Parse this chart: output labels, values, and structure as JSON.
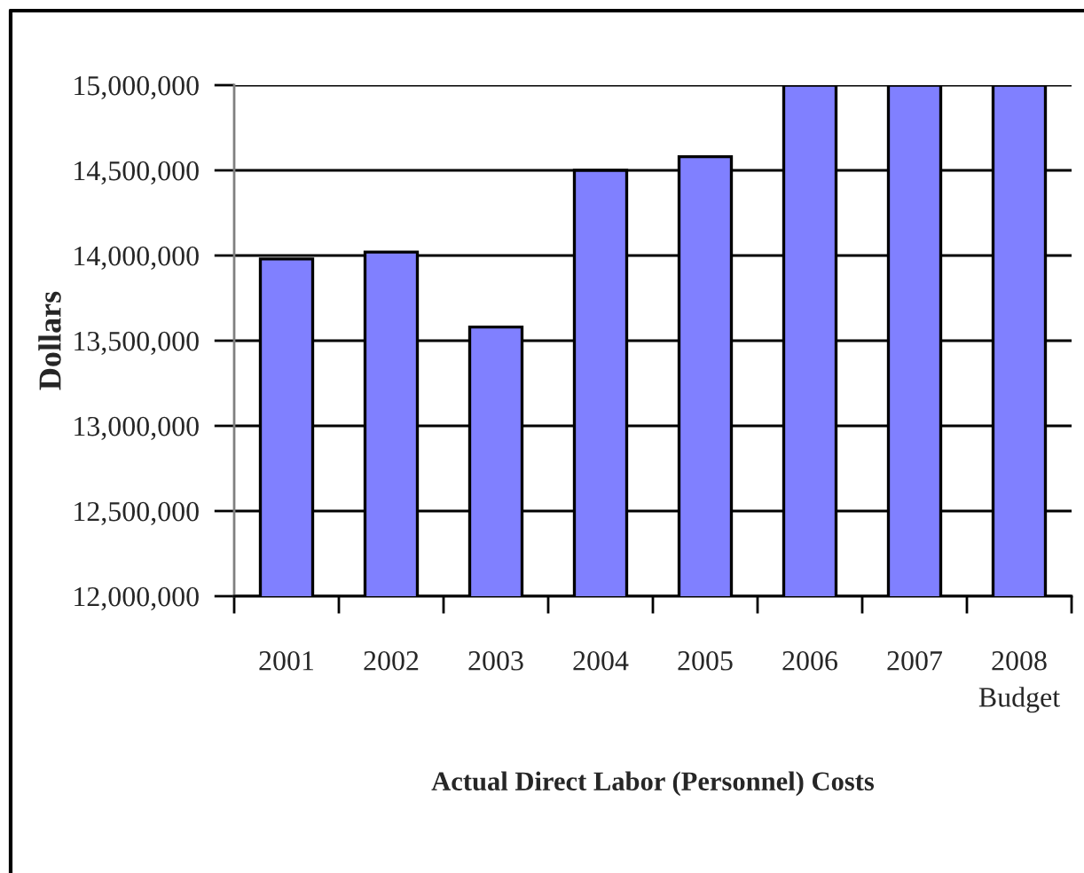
{
  "chart_data": {
    "type": "bar",
    "title": "Actual Direct Labor (Personnel) Costs",
    "ylabel": "Dollars",
    "categories": [
      "2001",
      "2002",
      "2003",
      "2004",
      "2005",
      "2006",
      "2007",
      "2008\nBudget"
    ],
    "values": [
      13980000,
      14020000,
      13580000,
      14500000,
      14580000,
      15000000,
      15000000,
      15000000
    ],
    "color": "#8080ff",
    "ylim": [
      12000000,
      15000000
    ],
    "yticks": [
      {
        "value": 12000000,
        "label": "12,000,000"
      },
      {
        "value": 12500000,
        "label": "12,500,000"
      },
      {
        "value": 13000000,
        "label": "13,000,000"
      },
      {
        "value": 13500000,
        "label": "13,500,000"
      },
      {
        "value": 14000000,
        "label": "14,000,000"
      },
      {
        "value": 14500000,
        "label": "14,500,000"
      },
      {
        "value": 15000000,
        "label": "15,000,000"
      }
    ],
    "grid": "y"
  }
}
